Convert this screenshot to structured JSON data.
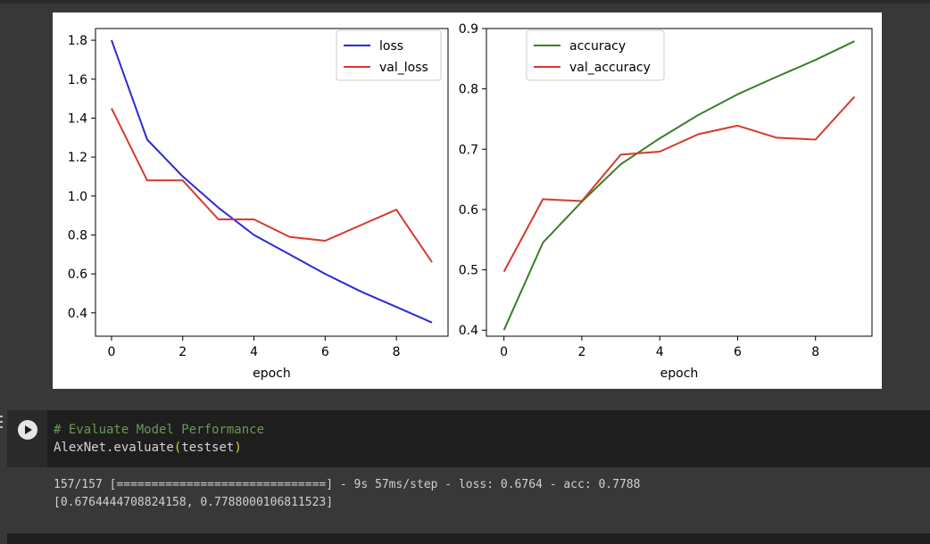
{
  "chart_data": [
    {
      "type": "line",
      "xlabel": "epoch",
      "ylabel": "",
      "x": [
        0,
        1,
        2,
        3,
        4,
        5,
        6,
        7,
        8,
        9
      ],
      "xlim": [
        -0.45,
        9.45
      ],
      "ylim": [
        0.28,
        1.86
      ],
      "xticks": [
        "0",
        "2",
        "4",
        "6",
        "8"
      ],
      "yticks": [
        "0.4",
        "0.6",
        "0.8",
        "1.0",
        "1.2",
        "1.4",
        "1.6",
        "1.8"
      ],
      "legend_position": "upper right",
      "series": [
        {
          "name": "loss",
          "color": "#2b2bd6",
          "values": [
            1.8,
            1.29,
            1.1,
            0.94,
            0.8,
            0.7,
            0.6,
            0.51,
            0.43,
            0.35
          ]
        },
        {
          "name": "val_loss",
          "color": "#d63a2b",
          "values": [
            1.45,
            1.08,
            1.08,
            0.88,
            0.88,
            0.79,
            0.77,
            0.85,
            0.93,
            0.66
          ]
        }
      ]
    },
    {
      "type": "line",
      "xlabel": "epoch",
      "ylabel": "",
      "x": [
        0,
        1,
        2,
        3,
        4,
        5,
        6,
        7,
        8,
        9
      ],
      "xlim": [
        -0.45,
        9.45
      ],
      "ylim": [
        0.39,
        0.9
      ],
      "xticks": [
        "0",
        "2",
        "4",
        "6",
        "8"
      ],
      "yticks": [
        "0.4",
        "0.5",
        "0.6",
        "0.7",
        "0.8",
        "0.9"
      ],
      "legend_position": "upper left",
      "series": [
        {
          "name": "accuracy",
          "color": "#3a7d2a",
          "values": [
            0.4,
            0.545,
            0.613,
            0.675,
            0.718,
            0.757,
            0.791,
            0.82,
            0.848,
            0.879
          ]
        },
        {
          "name": "val_accuracy",
          "color": "#d63a2b",
          "values": [
            0.497,
            0.617,
            0.614,
            0.691,
            0.696,
            0.725,
            0.739,
            0.719,
            0.716,
            0.787
          ]
        }
      ]
    }
  ],
  "code_cell": {
    "comment": "# Evaluate Model Performance",
    "code_pre": "AlexNet.evaluate",
    "code_open": "(",
    "code_arg": "testset",
    "code_close": ")"
  },
  "output": {
    "line1": "157/157 [==============================] - 9s 57ms/step - loss: 0.6764 - acc: 0.7788",
    "line2": "[0.6764444708824158, 0.7788000106811523]"
  },
  "colors": {
    "editor_bg": "#1e1e1e",
    "page_bg": "#383838",
    "comment": "#6a9955",
    "paren": "#e8c93a"
  },
  "icons": {
    "run": "play-circle-icon"
  }
}
